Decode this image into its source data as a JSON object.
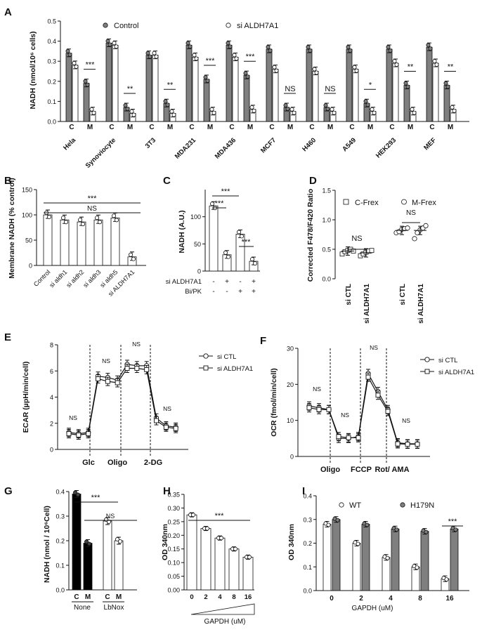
{
  "colors": {
    "dark_bar": "#7f7f7f",
    "white_bar": "#ffffff",
    "black_bar": "#000000",
    "ink": "#111111"
  },
  "chart_data": [
    {
      "panel": "A",
      "type": "bar",
      "ylabel": "NADH (nmol/10⁶ cells)",
      "ylim": [
        0,
        0.5
      ],
      "yticks": [
        "0.0",
        "0.1",
        "0.2",
        "0.3",
        "0.4",
        "0.5"
      ],
      "legend": [
        "Control",
        "si ALDH7A1"
      ],
      "groups": [
        "Hela",
        "Synoviocyte",
        "3T3",
        "MDA231",
        "MDA436",
        "MCF7",
        "H460",
        "A549",
        "HEK293",
        "MEF"
      ],
      "sublabels": [
        "C",
        "M"
      ],
      "series": [
        {
          "name": "Control",
          "C": [
            0.34,
            0.39,
            0.33,
            0.38,
            0.38,
            0.36,
            0.36,
            0.36,
            0.36,
            0.37
          ],
          "M": [
            0.19,
            0.07,
            0.09,
            0.21,
            0.23,
            0.07,
            0.07,
            0.09,
            0.18,
            0.18
          ]
        },
        {
          "name": "si ALDH7A1",
          "C": [
            0.28,
            0.38,
            0.33,
            0.32,
            0.32,
            0.26,
            0.25,
            0.26,
            0.29,
            0.29
          ],
          "M": [
            0.05,
            0.04,
            0.04,
            0.05,
            0.06,
            0.05,
            0.05,
            0.05,
            0.05,
            0.06
          ]
        }
      ],
      "significance": [
        "***",
        "**",
        "**",
        "***",
        "***",
        "NS",
        "NS",
        "*",
        "**",
        "**"
      ]
    },
    {
      "panel": "B",
      "type": "bar",
      "ylabel": "Membrane NADH (% control)",
      "ylim": [
        0,
        150
      ],
      "yticks": [
        "0",
        "50",
        "100",
        "150"
      ],
      "categories": [
        "Control",
        "si aldh1",
        "si aldh2",
        "si aldh3",
        "si aldh5",
        "si ALDH7A1"
      ],
      "values": [
        100,
        90,
        86,
        90,
        94,
        17
      ],
      "annotations": [
        "***",
        "NS"
      ]
    },
    {
      "panel": "C",
      "type": "bar",
      "ylabel": "NADH (A.U.)",
      "ylim": [
        0,
        150
      ],
      "yticks": [
        "0",
        "50",
        "100"
      ],
      "values": [
        120,
        30,
        68,
        18
      ],
      "row_labels": [
        "si ALDH7A1",
        "Bi/PK"
      ],
      "row1": [
        "-",
        "+",
        "-",
        "+"
      ],
      "row2": [
        "-",
        "-",
        "+",
        "+"
      ],
      "annotations": [
        "***",
        "***",
        "***"
      ]
    },
    {
      "panel": "D",
      "type": "scatter",
      "ylabel": "Corrected F478/F420 Ratio",
      "ylim": [
        0,
        1.5
      ],
      "yticks": [
        "0.0",
        "0.5",
        "1.0",
        "1.5"
      ],
      "legend": [
        "C-Frex",
        "M-Frex"
      ],
      "categories": [
        "si CTL",
        "si ALDH7A1",
        "si CTL",
        "si ALDH7A1"
      ],
      "means": [
        0.47,
        0.44,
        0.82,
        0.82
      ],
      "points": [
        [
          0.42,
          0.46,
          0.48,
          0.5,
          0.47
        ],
        [
          0.39,
          0.42,
          0.45,
          0.47,
          0.48
        ],
        [
          0.78,
          0.8,
          0.84,
          0.85,
          0.86
        ],
        [
          0.68,
          0.78,
          0.83,
          0.86,
          0.9
        ]
      ],
      "annotations": [
        "NS",
        "NS"
      ]
    },
    {
      "panel": "E",
      "type": "line",
      "ylabel": "ECAR (µpH/min/cell)",
      "ylim": [
        0,
        8
      ],
      "yticks": [
        "0",
        "2",
        "4",
        "6",
        "8"
      ],
      "x": [
        1,
        2,
        3,
        4,
        5,
        6,
        7,
        8,
        9,
        10,
        11,
        12
      ],
      "injections": [
        "Glc",
        "Oligo",
        "2-DG"
      ],
      "legend": [
        "si CTL",
        "si ALDH7A1"
      ],
      "series": [
        {
          "name": "si CTL",
          "values": [
            1.3,
            1.2,
            1.3,
            5.6,
            5.5,
            5.3,
            6.5,
            6.4,
            6.4,
            2.4,
            1.8,
            1.7
          ]
        },
        {
          "name": "si ALDH7A1",
          "values": [
            1.2,
            1.1,
            1.2,
            5.4,
            5.2,
            5.1,
            6.2,
            6.2,
            6.1,
            2.2,
            1.7,
            1.6
          ]
        }
      ],
      "annotations": [
        "NS",
        "NS",
        "NS",
        "NS"
      ]
    },
    {
      "panel": "F",
      "type": "line",
      "ylabel": "OCR (fmol/min/cell)",
      "ylim": [
        0,
        30
      ],
      "yticks": [
        "0",
        "10",
        "20",
        "30"
      ],
      "x": [
        1,
        2,
        3,
        4,
        5,
        6,
        7,
        8,
        9,
        10,
        11,
        12
      ],
      "injections": [
        "Oligo",
        "FCCP",
        "Rot/ AMA"
      ],
      "legend": [
        "si CTL",
        "si ALDH7A1"
      ],
      "series": [
        {
          "name": "si CTL",
          "values": [
            14,
            13.5,
            13,
            5,
            5,
            5.5,
            23,
            18,
            13,
            3.8,
            3.5,
            3.5
          ]
        },
        {
          "name": "si ALDH7A1",
          "values": [
            13.5,
            13,
            13,
            5.5,
            5.2,
            5.2,
            22,
            17,
            12.5,
            3.5,
            3.4,
            3.4
          ]
        }
      ],
      "annotations": [
        "NS",
        "NS",
        "NS",
        "NS"
      ]
    },
    {
      "panel": "G",
      "type": "bar",
      "ylabel": "NADH (nmol / 10⁶Cell)",
      "ylim": [
        0,
        0.4
      ],
      "yticks": [
        "0.0",
        "0.1",
        "0.2",
        "0.3",
        "0.4"
      ],
      "groups": [
        "None",
        "LbNox"
      ],
      "sublabels": [
        "C",
        "M"
      ],
      "values": [
        0.39,
        0.19,
        0.28,
        0.2
      ],
      "annotations": [
        "***",
        "NS"
      ]
    },
    {
      "panel": "H",
      "type": "bar",
      "ylabel": "OD 340nm",
      "xlabel": "GAPDH (uM)",
      "ylim": [
        0,
        0.35
      ],
      "yticks": [
        "0.00",
        "0.05",
        "0.10",
        "0.15",
        "0.20",
        "0.25",
        "0.30",
        "0.35"
      ],
      "categories": [
        "0",
        "2",
        "4",
        "8",
        "16"
      ],
      "values": [
        0.275,
        0.225,
        0.19,
        0.15,
        0.12
      ],
      "annotations": [
        "***"
      ]
    },
    {
      "panel": "I",
      "type": "bar",
      "ylabel": "OD 340nm",
      "xlabel": "GAPDH (uM)",
      "ylim": [
        0,
        0.4
      ],
      "yticks": [
        "0.0",
        "0.1",
        "0.2",
        "0.3",
        "0.4"
      ],
      "categories": [
        "0",
        "2",
        "4",
        "8",
        "16"
      ],
      "legend": [
        "WT",
        "H179N"
      ],
      "series": [
        {
          "name": "WT",
          "values": [
            0.28,
            0.2,
            0.14,
            0.1,
            0.05
          ]
        },
        {
          "name": "H179N",
          "values": [
            0.3,
            0.28,
            0.26,
            0.25,
            0.26
          ]
        }
      ],
      "annotations": [
        "***"
      ]
    }
  ]
}
